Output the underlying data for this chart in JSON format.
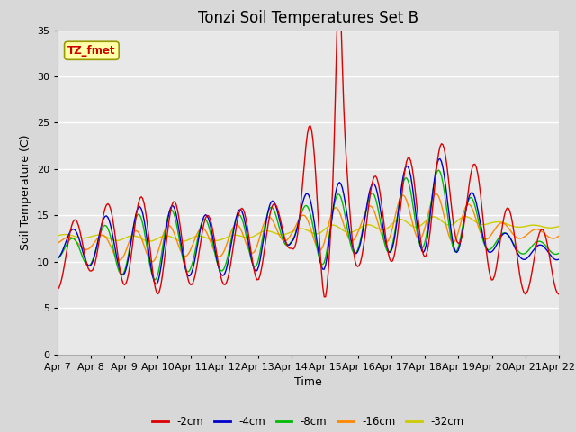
{
  "title": "Tonzi Soil Temperatures Set B",
  "xlabel": "Time",
  "ylabel": "Soil Temperature (C)",
  "ylim": [
    0,
    35
  ],
  "legend_label": "TZ_fmet",
  "series_labels": [
    "-2cm",
    "-4cm",
    "-8cm",
    "-16cm",
    "-32cm"
  ],
  "series_colors": [
    "#dd0000",
    "#0000cc",
    "#00bb00",
    "#ff8800",
    "#cccc00"
  ],
  "xtick_labels": [
    "Apr 7",
    "Apr 8",
    "Apr 9",
    "Apr 10",
    "Apr 11",
    "Apr 12",
    "Apr 13",
    "Apr 14",
    "Apr 15",
    "Apr 16",
    "Apr 17",
    "Apr 18",
    "Apr 19",
    "Apr 20",
    "Apr 21",
    "Apr 22"
  ],
  "fig_bg": "#d8d8d8",
  "plot_bg": "#e8e8e8",
  "title_fontsize": 12,
  "axis_fontsize": 9,
  "tick_fontsize": 8
}
